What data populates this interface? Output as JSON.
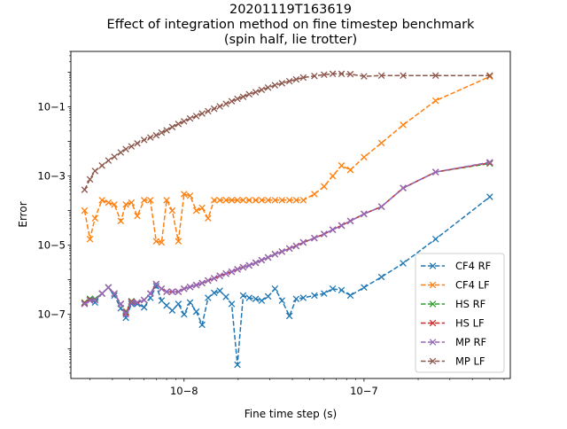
{
  "chart_data": {
    "type": "line",
    "title_lines": [
      "20201119T163619",
      "Effect of integration method on fine timestep benchmark",
      "(spin half, lie trotter)"
    ],
    "xlabel": "Fine time step (s)",
    "ylabel": "Error",
    "xscale": "log",
    "yscale": "log",
    "xlim": [
      2.35e-09,
      6.5e-07
    ],
    "ylim": [
      1.4e-09,
      4.0
    ],
    "x_ticks": [
      {
        "value": 1e-08,
        "label": "10−8"
      },
      {
        "value": 1e-07,
        "label": "10−7"
      }
    ],
    "y_ticks": [
      {
        "value": 0.1,
        "label": "10−1"
      },
      {
        "value": 0.001,
        "label": "10−3"
      },
      {
        "value": 1e-05,
        "label": "10−5"
      },
      {
        "value": 1e-07,
        "label": "10−7"
      }
    ],
    "grid": false,
    "legend_position": "lower-right",
    "marker": "x",
    "line_style": "dashed",
    "series": [
      {
        "name": "CF4 RF",
        "color": "#1f77b4",
        "x": [
          2.8e-09,
          3e-09,
          3.2e-09,
          3.5e-09,
          3.8e-09,
          4.1e-09,
          4.45e-09,
          4.75e-09,
          5.1e-09,
          5.5e-09,
          6e-09,
          6.5e-09,
          7e-09,
          7.5e-09,
          8e-09,
          8.6e-09,
          9.3e-09,
          1e-08,
          1.08e-08,
          1.17e-08,
          1.26e-08,
          1.36e-08,
          1.47e-08,
          1.58e-08,
          1.71e-08,
          1.84e-08,
          1.98e-08,
          2.13e-08,
          2.3e-08,
          2.5e-08,
          2.7e-08,
          2.93e-08,
          3.2e-08,
          3.5e-08,
          3.85e-08,
          4.2e-08,
          4.6e-08,
          5.3e-08,
          6e-08,
          6.7e-08,
          7.5e-08,
          8.4e-08,
          1e-07,
          1.25e-07,
          1.65e-07,
          2.5e-07,
          5e-07
        ],
        "y": [
          2e-07,
          2.8e-07,
          2.2e-07,
          4e-07,
          6e-07,
          3.5e-07,
          1.5e-07,
          8e-08,
          2e-07,
          2e-07,
          1.6e-07,
          3e-07,
          6.5e-07,
          2.5e-07,
          1.8e-07,
          1.3e-07,
          2e-07,
          1e-07,
          2.2e-07,
          1.2e-07,
          5e-08,
          3e-07,
          4.2e-07,
          4.8e-07,
          3.2e-07,
          2e-07,
          3.5e-09,
          3.5e-07,
          3e-07,
          2.8e-07,
          2.5e-07,
          3.3e-07,
          5.5e-07,
          2.5e-07,
          9e-08,
          2.8e-07,
          3e-07,
          3.5e-07,
          4e-07,
          5.5e-07,
          5e-07,
          3.5e-07,
          6e-07,
          1.2e-06,
          3e-06,
          1.5e-05,
          0.00025
        ]
      },
      {
        "name": "CF4 LF",
        "color": "#ff7f0e",
        "x": [
          2.8e-09,
          3e-09,
          3.2e-09,
          3.5e-09,
          3.8e-09,
          4.1e-09,
          4.45e-09,
          4.75e-09,
          5.1e-09,
          5.5e-09,
          6e-09,
          6.5e-09,
          7e-09,
          7.5e-09,
          8e-09,
          8.6e-09,
          9.3e-09,
          1e-08,
          1.08e-08,
          1.17e-08,
          1.26e-08,
          1.36e-08,
          1.47e-08,
          1.58e-08,
          1.71e-08,
          1.84e-08,
          1.98e-08,
          2.13e-08,
          2.3e-08,
          2.5e-08,
          2.7e-08,
          2.93e-08,
          3.2e-08,
          3.5e-08,
          3.85e-08,
          4.2e-08,
          4.6e-08,
          5.3e-08,
          6e-08,
          6.7e-08,
          7.5e-08,
          8.4e-08,
          1e-07,
          1.25e-07,
          1.65e-07,
          2.5e-07,
          5e-07
        ],
        "y": [
          0.0001,
          1.5e-05,
          6e-05,
          0.0002,
          0.00017,
          0.00015,
          5e-05,
          0.00015,
          0.00017,
          7e-05,
          0.0002,
          0.0002,
          1.3e-05,
          1.2e-05,
          0.0002,
          0.0001,
          1.3e-05,
          0.0003,
          0.00027,
          0.0001,
          0.00012,
          6e-05,
          0.0002,
          0.0002,
          0.0002,
          0.0002,
          0.0002,
          0.0002,
          0.0002,
          0.0002,
          0.0002,
          0.0002,
          0.0002,
          0.0002,
          0.0002,
          0.0002,
          0.0002,
          0.0003,
          0.0005,
          0.001,
          0.002,
          0.0015,
          0.0035,
          0.009,
          0.03,
          0.15,
          0.75
        ]
      },
      {
        "name": "HS RF",
        "color": "#2ca02c",
        "x": [
          2.8e-09,
          3e-09,
          3.2e-09,
          3.5e-09,
          3.8e-09,
          4.1e-09,
          4.45e-09,
          4.75e-09,
          5.1e-09,
          5.5e-09,
          6e-09,
          6.5e-09,
          7e-09,
          7.5e-09,
          8e-09,
          8.6e-09,
          9.3e-09,
          1e-08,
          1.08e-08,
          1.17e-08,
          1.26e-08,
          1.36e-08,
          1.47e-08,
          1.58e-08,
          1.71e-08,
          1.84e-08,
          1.98e-08,
          2.13e-08,
          2.3e-08,
          2.5e-08,
          2.7e-08,
          2.93e-08,
          3.2e-08,
          3.5e-08,
          3.85e-08,
          4.2e-08,
          4.6e-08,
          5.3e-08,
          6e-08,
          6.7e-08,
          7.5e-08,
          8.4e-08,
          1e-07,
          1.25e-07,
          1.65e-07,
          2.5e-07,
          5e-07
        ],
        "y": [
          2.2e-07,
          2.8e-07,
          2.8e-07,
          4e-07,
          6e-07,
          4e-07,
          2e-07,
          1.2e-07,
          2.4e-07,
          2.2e-07,
          2.6e-07,
          4e-07,
          7.5e-07,
          5.5e-07,
          4.5e-07,
          4.5e-07,
          4.5e-07,
          5.5e-07,
          6.2e-07,
          7e-07,
          8e-07,
          9.5e-07,
          1.1e-06,
          1.3e-06,
          1.5e-06,
          1.7e-06,
          2e-06,
          2.3e-06,
          2.6e-06,
          3.1e-06,
          3.7e-06,
          4.4e-06,
          5.5e-06,
          6.5e-06,
          8e-06,
          9.5e-06,
          1.2e-05,
          1.6e-05,
          2.1e-05,
          2.8e-05,
          3.7e-05,
          5e-05,
          8e-05,
          0.00013,
          0.00045,
          0.0013,
          0.0023
        ]
      },
      {
        "name": "HS LF",
        "color": "#d62728",
        "x": [
          2.8e-09,
          3e-09,
          3.2e-09,
          3.5e-09,
          3.8e-09,
          4.1e-09,
          4.45e-09,
          4.75e-09,
          5.1e-09,
          5.5e-09,
          6e-09,
          6.5e-09,
          7e-09,
          7.5e-09,
          8e-09,
          8.6e-09,
          9.3e-09,
          1e-08,
          1.08e-08,
          1.17e-08,
          1.26e-08,
          1.36e-08,
          1.47e-08,
          1.58e-08,
          1.71e-08,
          1.84e-08,
          1.98e-08,
          2.13e-08,
          2.3e-08,
          2.5e-08,
          2.7e-08,
          2.93e-08,
          3.2e-08,
          3.5e-08,
          3.85e-08,
          4.2e-08,
          4.6e-08,
          5.3e-08,
          6e-08,
          6.7e-08,
          7.5e-08,
          8.4e-08,
          1e-07,
          1.25e-07,
          1.65e-07,
          2.5e-07,
          5e-07
        ],
        "y": [
          2.1e-07,
          2.6e-07,
          2.6e-07,
          4e-07,
          6e-07,
          4e-07,
          2e-07,
          1.1e-07,
          2.3e-07,
          2.2e-07,
          2.6e-07,
          4e-07,
          7.5e-07,
          5.5e-07,
          4.5e-07,
          4.5e-07,
          4.5e-07,
          5.5e-07,
          6.2e-07,
          7e-07,
          8e-07,
          9.5e-07,
          1.1e-06,
          1.3e-06,
          1.5e-06,
          1.7e-06,
          2e-06,
          2.3e-06,
          2.6e-06,
          3.1e-06,
          3.7e-06,
          4.4e-06,
          5.5e-06,
          6.5e-06,
          8e-06,
          9.5e-06,
          1.2e-05,
          1.6e-05,
          2.1e-05,
          2.8e-05,
          3.7e-05,
          5e-05,
          8e-05,
          0.00013,
          0.00045,
          0.0013,
          0.0024
        ]
      },
      {
        "name": "MP RF",
        "color": "#9467bd",
        "x": [
          2.8e-09,
          3e-09,
          3.2e-09,
          3.5e-09,
          3.8e-09,
          4.1e-09,
          4.45e-09,
          4.75e-09,
          5.1e-09,
          5.5e-09,
          6e-09,
          6.5e-09,
          7e-09,
          7.5e-09,
          8e-09,
          8.6e-09,
          9.3e-09,
          1e-08,
          1.08e-08,
          1.17e-08,
          1.26e-08,
          1.36e-08,
          1.47e-08,
          1.58e-08,
          1.71e-08,
          1.84e-08,
          1.98e-08,
          2.13e-08,
          2.3e-08,
          2.5e-08,
          2.7e-08,
          2.93e-08,
          3.2e-08,
          3.5e-08,
          3.85e-08,
          4.2e-08,
          4.6e-08,
          5.3e-08,
          6e-08,
          6.7e-08,
          7.5e-08,
          8.4e-08,
          1e-07,
          1.25e-07,
          1.65e-07,
          2.5e-07,
          5e-07
        ],
        "y": [
          2e-07,
          2.5e-07,
          2.6e-07,
          4e-07,
          6e-07,
          4e-07,
          2e-07,
          1e-07,
          2.2e-07,
          2.2e-07,
          2.6e-07,
          4e-07,
          7.5e-07,
          5.5e-07,
          4.5e-07,
          4.5e-07,
          4.5e-07,
          5.5e-07,
          6.2e-07,
          7e-07,
          8e-07,
          9.5e-07,
          1.1e-06,
          1.3e-06,
          1.5e-06,
          1.7e-06,
          2e-06,
          2.3e-06,
          2.6e-06,
          3.1e-06,
          3.7e-06,
          4.4e-06,
          5.5e-06,
          6.5e-06,
          8e-06,
          9.5e-06,
          1.2e-05,
          1.6e-05,
          2.1e-05,
          2.8e-05,
          3.7e-05,
          5e-05,
          8e-05,
          0.00013,
          0.00045,
          0.0013,
          0.0025
        ]
      },
      {
        "name": "MP LF",
        "color": "#8c564b",
        "x": [
          2.8e-09,
          3e-09,
          3.2e-09,
          3.5e-09,
          3.8e-09,
          4.1e-09,
          4.45e-09,
          4.75e-09,
          5.1e-09,
          5.5e-09,
          6e-09,
          6.5e-09,
          7e-09,
          7.5e-09,
          8e-09,
          8.6e-09,
          9.3e-09,
          1e-08,
          1.08e-08,
          1.17e-08,
          1.26e-08,
          1.36e-08,
          1.47e-08,
          1.58e-08,
          1.71e-08,
          1.84e-08,
          1.98e-08,
          2.13e-08,
          2.3e-08,
          2.5e-08,
          2.7e-08,
          2.93e-08,
          3.2e-08,
          3.5e-08,
          3.85e-08,
          4.2e-08,
          4.6e-08,
          5.3e-08,
          6e-08,
          6.7e-08,
          7.5e-08,
          8.4e-08,
          1e-07,
          1.25e-07,
          1.65e-07,
          2.5e-07,
          5e-07
        ],
        "y": [
          0.0004,
          0.0008,
          0.0014,
          0.002,
          0.0028,
          0.0036,
          0.0048,
          0.006,
          0.0072,
          0.0088,
          0.011,
          0.013,
          0.015,
          0.018,
          0.021,
          0.026,
          0.032,
          0.038,
          0.046,
          0.054,
          0.064,
          0.075,
          0.088,
          0.103,
          0.122,
          0.145,
          0.17,
          0.195,
          0.23,
          0.265,
          0.31,
          0.36,
          0.42,
          0.48,
          0.55,
          0.62,
          0.7,
          0.78,
          0.85,
          0.9,
          0.9,
          0.88,
          0.76,
          0.8,
          0.8,
          0.8,
          0.8
        ]
      }
    ]
  }
}
